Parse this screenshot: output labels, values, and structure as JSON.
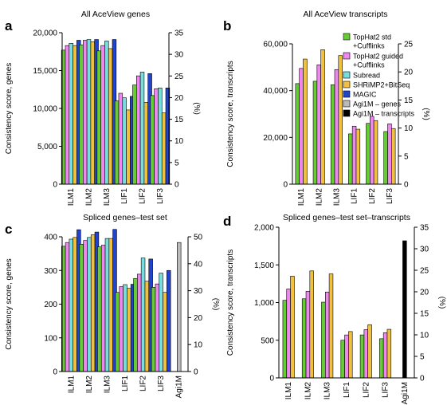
{
  "legend": [
    {
      "label": "TopHat2 std",
      "label2": "+Cufflinks",
      "color": "#66cc33"
    },
    {
      "label": "TopHat2 guided",
      "label2": "+Cufflinks",
      "color": "#ee88ee"
    },
    {
      "label": "Subread",
      "label2": "",
      "color": "#77dddd"
    },
    {
      "label": "SHRiMP2+BitSeq",
      "label2": "",
      "color": "#f0c040"
    },
    {
      "label": "MAGIC",
      "label2": "",
      "color": "#2244cc"
    },
    {
      "label": "Agi1M – genes",
      "label2": "",
      "color": "#bbbbbb"
    },
    {
      "label": "Agi1M – transcripts",
      "label2": "",
      "color": "#000000"
    }
  ],
  "chart_data": [
    {
      "panel": "a",
      "type": "bar",
      "title": "All AceView genes",
      "ylabel": "Consistency score, genes",
      "y2label": "(%)",
      "ylim": [
        0,
        20000
      ],
      "yticks": [
        "0",
        "5,000",
        "10,000",
        "15,000",
        "20,000"
      ],
      "yticks_values": [
        0,
        5000,
        10000,
        15000,
        20000
      ],
      "y2lim": [
        0,
        35
      ],
      "y2ticks": [
        "0",
        "5",
        "10",
        "15",
        "20",
        "25",
        "30",
        "35"
      ],
      "categories": [
        "ILM1",
        "ILM2",
        "ILM3",
        "LIF1",
        "LIF2",
        "LIF3"
      ],
      "series": [
        {
          "legend_index": 0,
          "values": [
            17700,
            18400,
            17600,
            11000,
            13100,
            11700
          ]
        },
        {
          "legend_index": 1,
          "values": [
            18300,
            19000,
            18300,
            12000,
            14300,
            12600
          ]
        },
        {
          "legend_index": 2,
          "values": [
            18600,
            19100,
            18900,
            11400,
            14800,
            12700
          ]
        },
        {
          "legend_index": 3,
          "values": [
            18300,
            18800,
            17900,
            9800,
            10800,
            9400
          ]
        },
        {
          "legend_index": 4,
          "values": [
            19000,
            19100,
            19100,
            11600,
            14600,
            12700
          ]
        }
      ]
    },
    {
      "panel": "b",
      "type": "bar",
      "title": "All AceView transcripts",
      "ylabel": "Consistency score, transcripts",
      "y2label": "(%)",
      "ylim": [
        0,
        60000
      ],
      "yticks": [
        "0",
        "20,000",
        "40,000",
        "60,000"
      ],
      "yticks_values": [
        0,
        20000,
        40000,
        60000
      ],
      "y2lim": [
        0,
        25
      ],
      "y2ticks": [
        "0",
        "5",
        "10",
        "15",
        "20",
        "25"
      ],
      "categories": [
        "ILM1",
        "ILM2",
        "ILM3",
        "LIF1",
        "LIF2",
        "LIF3"
      ],
      "series": [
        {
          "legend_index": 0,
          "values": [
            43000,
            44000,
            42500,
            21500,
            26000,
            22500
          ]
        },
        {
          "legend_index": 1,
          "values": [
            49500,
            51000,
            49000,
            24800,
            29000,
            25800
          ]
        },
        {
          "legend_index": 3,
          "values": [
            53500,
            57500,
            55000,
            23500,
            27200,
            23800
          ]
        }
      ]
    },
    {
      "panel": "c",
      "type": "bar",
      "title": "Spliced genes–test set",
      "ylabel": "Consistency score, genes",
      "y2label": "(%)",
      "ylim": [
        0,
        400
      ],
      "yticks": [
        "0",
        "100",
        "200",
        "300",
        "400"
      ],
      "yticks_values": [
        0,
        100,
        200,
        300,
        400
      ],
      "y2lim": [
        0,
        50
      ],
      "y2ticks": [
        "0",
        "10",
        "20",
        "30",
        "40",
        "50"
      ],
      "categories": [
        "ILM1",
        "ILM2",
        "ILM3",
        "LIF1",
        "LIF2",
        "LIF3",
        "Agi1M"
      ],
      "series": [
        {
          "legend_index": 0,
          "values": [
            372,
            378,
            370,
            235,
            276,
            250,
            null
          ]
        },
        {
          "legend_index": 1,
          "values": [
            383,
            389,
            375,
            252,
            289,
            260,
            null
          ]
        },
        {
          "legend_index": 2,
          "values": [
            393,
            398,
            395,
            258,
            337,
            292,
            null
          ]
        },
        {
          "legend_index": 3,
          "values": [
            398,
            406,
            395,
            247,
            268,
            235,
            null
          ]
        },
        {
          "legend_index": 4,
          "values": [
            421,
            414,
            422,
            259,
            334,
            300,
            null
          ]
        },
        {
          "legend_index": 5,
          "values": [
            null,
            null,
            null,
            null,
            null,
            null,
            383
          ]
        }
      ]
    },
    {
      "panel": "d",
      "type": "bar",
      "title": "Spliced genes–test set–transcripts",
      "ylabel": "Consistency score, transcripts",
      "y2label": "(%)",
      "ylim": [
        0,
        2000
      ],
      "yticks": [
        "0",
        "500",
        "1,000",
        "1,500",
        "2,000"
      ],
      "yticks_values": [
        0,
        500,
        1000,
        1500,
        2000
      ],
      "y2lim": [
        0,
        35
      ],
      "y2ticks": [
        "0",
        "5",
        "10",
        "15",
        "20",
        "25",
        "30",
        "35"
      ],
      "categories": [
        "ILM1",
        "ILM2",
        "ILM3",
        "LIF1",
        "LIF2",
        "LIF3",
        "Agi1M"
      ],
      "series": [
        {
          "legend_index": 0,
          "values": [
            1030,
            1050,
            1005,
            500,
            570,
            520,
            null
          ]
        },
        {
          "legend_index": 1,
          "values": [
            1180,
            1150,
            1140,
            570,
            640,
            600,
            null
          ]
        },
        {
          "legend_index": 3,
          "values": [
            1350,
            1420,
            1380,
            615,
            705,
            645,
            null
          ]
        },
        {
          "legend_index": 6,
          "values": [
            null,
            null,
            null,
            null,
            null,
            null,
            1820
          ]
        }
      ]
    }
  ]
}
